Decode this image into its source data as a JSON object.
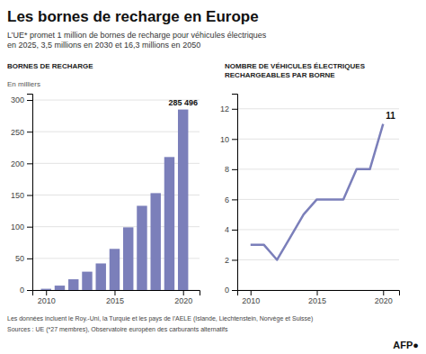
{
  "title": "Les bornes de recharge en Europe",
  "subtitle": "L’UE* promet 1 million de bornes de recharge pour véhicules électriques\nen 2025, 3,5 millions en 2030 et 16,3 millions en 2050",
  "footnotes": [
    "Les données incluent le Roy.-Uni, la Turquie et les pays de l’AELE (Islande, Liechtenstein, Norvège et Suisse)",
    "Sources : UE (*27 membres), Observatoire européen des carburants alternatifs"
  ],
  "credit": "AFP●",
  "chart_data": [
    {
      "type": "bar",
      "title": "BORNES DE RECHARGE",
      "y_label": "En milliers",
      "x": [
        2010,
        2011,
        2012,
        2013,
        2014,
        2015,
        2016,
        2017,
        2018,
        2019,
        2020
      ],
      "values": [
        2,
        7,
        17,
        29,
        42,
        65,
        99,
        133,
        153,
        210,
        285
      ],
      "color": "#7b7fba",
      "xlim": [
        2009.0,
        2021.2
      ],
      "xticks": [
        2010,
        2015,
        2020
      ],
      "ylim": [
        0,
        310
      ],
      "yticks": [
        0,
        50,
        100,
        150,
        200,
        250,
        300
      ],
      "grid": true,
      "annotations": [
        {
          "text": "285 496",
          "x": 2020,
          "y": 288
        }
      ]
    },
    {
      "type": "line",
      "title": "NOMBRE DE VÉHICULES ÉLECTRIQUES\nRECHARGEABLES PAR BORNE",
      "x": [
        2010,
        2011,
        2012,
        2013,
        2014,
        2015,
        2016,
        2017,
        2018,
        2019,
        2020
      ],
      "values": [
        3.0,
        3.0,
        2.0,
        3.5,
        5.0,
        6.0,
        6.0,
        6.0,
        8.0,
        8.0,
        11.0
      ],
      "color": "#7b7fba",
      "xlim": [
        2009.0,
        2021.2
      ],
      "xticks": [
        2010,
        2015,
        2020
      ],
      "ylim": [
        0,
        13
      ],
      "yticks": [
        0,
        2,
        4,
        6,
        8,
        10,
        12
      ],
      "grid": true,
      "annotations": [
        {
          "text": "11",
          "x": 2020.2,
          "y": 11.2
        }
      ]
    }
  ]
}
